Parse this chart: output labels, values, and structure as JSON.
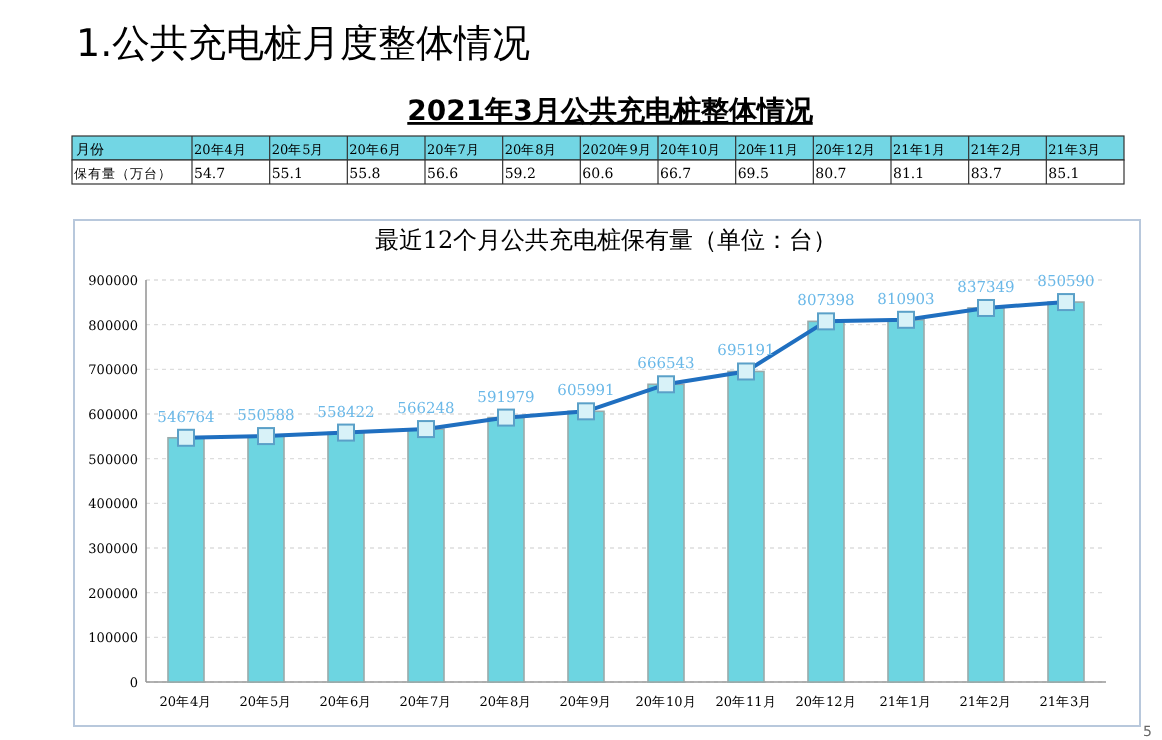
{
  "chart_data": [
    {
      "type": "other",
      "annotations": [
        "1.公共充电桩月度整体情况"
      ],
      "title": "2021年3月公共充电桩整体情况",
      "xlabel": "月份",
      "ylabel": "保有量（万台）",
      "categories": [
        "20年4月",
        "20年5月",
        "20年6月",
        "20年7月",
        "20年8月",
        "2020年9月",
        "20年10月",
        "20年11月",
        "20年12月",
        "21年1月",
        "21年2月",
        "21年3月"
      ],
      "values": [
        54.7,
        55.1,
        55.8,
        56.6,
        59.2,
        60.6,
        66.7,
        69.5,
        80.7,
        81.1,
        83.7,
        85.1
      ],
      "data_labels": true
    },
    {
      "type": "bar",
      "title": "最近12个月公共充电桩保有量（单位：台）",
      "annotations": [
        "5"
      ],
      "categories": [
        "20年4月",
        "20年5月",
        "20年6月",
        "20年7月",
        "20年8月",
        "20年9月",
        "20年10月",
        "20年11月",
        "20年12月",
        "21年1月",
        "21年2月",
        "21年3月"
      ],
      "series": [
        {
          "type": "bar",
          "color": "#6dd5e1",
          "values": [
            546764,
            550588,
            558422,
            566248,
            591979,
            605991,
            666543,
            695191,
            807398,
            810903,
            837349,
            850590
          ]
        },
        {
          "type": "line",
          "color": "#1f6fc0",
          "marker": "square",
          "data_labels": true,
          "values": [
            546764,
            550588,
            558422,
            566248,
            591979,
            605991,
            666543,
            695191,
            807398,
            810903,
            837349,
            850590
          ]
        }
      ],
      "ylim": [
        0,
        900000
      ],
      "yticks": [
        0,
        100000,
        200000,
        300000,
        400000,
        500000,
        600000,
        700000,
        800000,
        900000
      ],
      "grid": "y"
    }
  ]
}
